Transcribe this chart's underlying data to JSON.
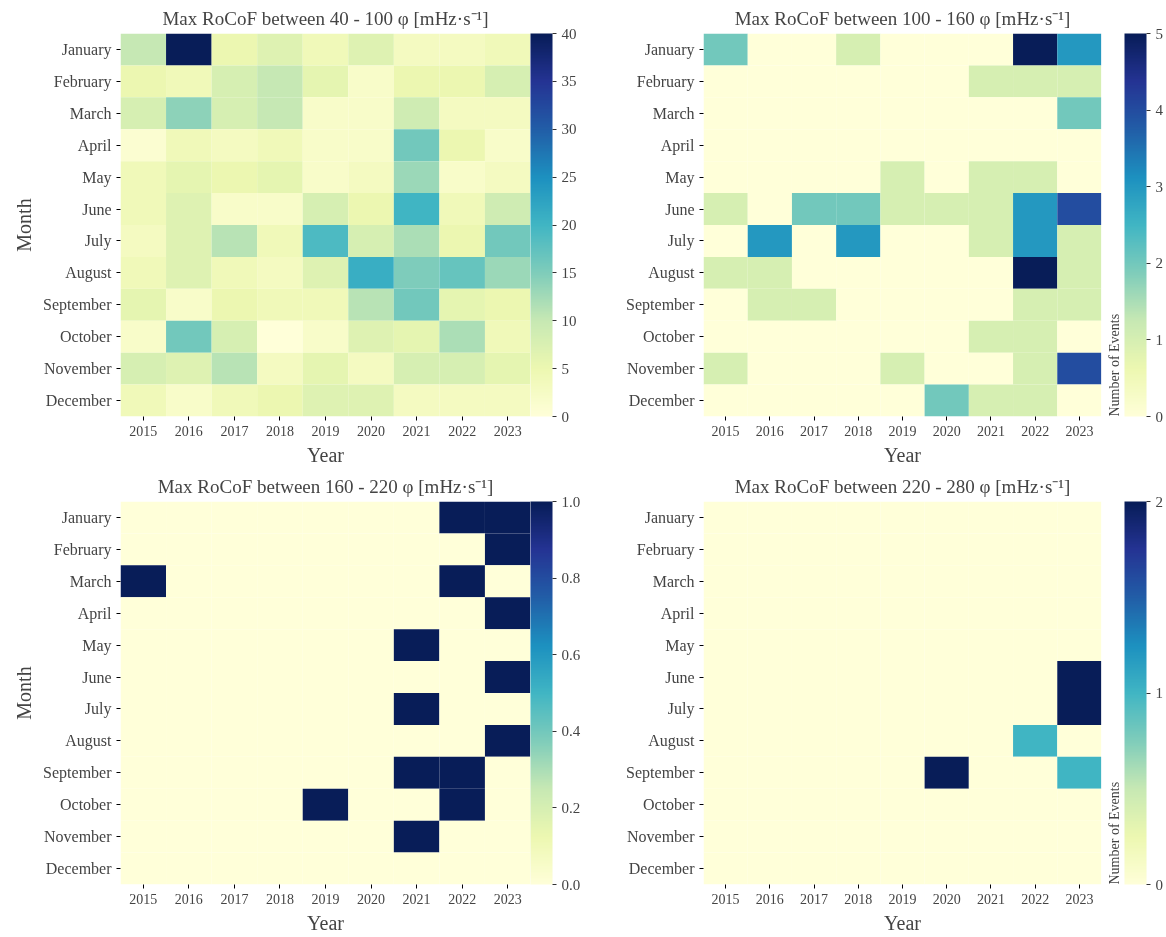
{
  "chart_data": [
    {
      "type": "heatmap",
      "title": "Max RoCoF between 40 - 100 φ [mHz·s⁻¹]",
      "xlabel": "Year",
      "ylabel": "Month",
      "categories": [
        "2015",
        "2016",
        "2017",
        "2018",
        "2019",
        "2020",
        "2021",
        "2022",
        "2023"
      ],
      "y_categories": [
        "January",
        "February",
        "March",
        "April",
        "May",
        "June",
        "July",
        "August",
        "September",
        "October",
        "November",
        "December"
      ],
      "cells": [
        [
          10,
          40,
          5,
          7,
          4,
          7,
          3,
          3,
          4
        ],
        [
          5,
          4,
          8,
          10,
          6,
          2,
          5,
          5,
          8
        ],
        [
          8,
          14,
          8,
          10,
          2,
          2,
          9,
          3,
          3
        ],
        [
          1,
          4,
          3,
          4,
          2,
          2,
          16,
          5,
          2
        ],
        [
          4,
          6,
          5,
          6,
          2,
          3,
          13,
          2,
          3
        ],
        [
          4,
          7,
          2,
          2,
          8,
          5,
          20,
          4,
          9
        ],
        [
          3,
          7,
          11,
          4,
          19,
          8,
          12,
          5,
          16
        ],
        [
          4,
          7,
          4,
          3,
          7,
          21,
          15,
          17,
          13
        ],
        [
          6,
          2,
          5,
          4,
          4,
          11,
          16,
          6,
          5
        ],
        [
          2,
          16,
          8,
          0,
          2,
          7,
          6,
          12,
          4
        ],
        [
          8,
          7,
          11,
          3,
          6,
          3,
          8,
          8,
          6
        ],
        [
          4,
          2,
          4,
          5,
          7,
          7,
          3,
          3,
          3
        ]
      ],
      "clim": [
        0,
        40
      ],
      "cticks": [
        0,
        5,
        10,
        15,
        20,
        25,
        30,
        35,
        40
      ]
    },
    {
      "type": "heatmap",
      "title": "Max RoCoF between 100 - 160 φ [mHz·s⁻¹]",
      "xlabel": "Year",
      "clabel": "Number of Events",
      "categories": [
        "2015",
        "2016",
        "2017",
        "2018",
        "2019",
        "2020",
        "2021",
        "2022",
        "2023"
      ],
      "y_categories": [
        "January",
        "February",
        "March",
        "April",
        "May",
        "June",
        "July",
        "August",
        "September",
        "October",
        "November",
        "December"
      ],
      "cells": [
        [
          2,
          0,
          0,
          1,
          0,
          0,
          0,
          5,
          3
        ],
        [
          0,
          0,
          0,
          0,
          0,
          0,
          1,
          1,
          1
        ],
        [
          0,
          0,
          0,
          0,
          0,
          0,
          0,
          0,
          2
        ],
        [
          0,
          0,
          0,
          0,
          0,
          0,
          0,
          0,
          0
        ],
        [
          0,
          0,
          0,
          0,
          1,
          0,
          1,
          1,
          0
        ],
        [
          1,
          0,
          2,
          2,
          1,
          1,
          1,
          3,
          4
        ],
        [
          0,
          3,
          0,
          3,
          0,
          0,
          1,
          3,
          1
        ],
        [
          1,
          1,
          0,
          0,
          0,
          0,
          0,
          5,
          1
        ],
        [
          0,
          1,
          1,
          0,
          0,
          0,
          0,
          1,
          1
        ],
        [
          0,
          0,
          0,
          0,
          0,
          0,
          1,
          1,
          0
        ],
        [
          1,
          0,
          0,
          0,
          1,
          0,
          0,
          1,
          4
        ],
        [
          0,
          0,
          0,
          0,
          0,
          2,
          1,
          1,
          0
        ]
      ],
      "clim": [
        0,
        5
      ],
      "cticks": [
        0,
        1,
        2,
        3,
        4,
        5
      ]
    },
    {
      "type": "heatmap",
      "title": "Max RoCoF between 160 - 220 φ [mHz·s⁻¹]",
      "xlabel": "Year",
      "ylabel": "Month",
      "categories": [
        "2015",
        "2016",
        "2017",
        "2018",
        "2019",
        "2020",
        "2021",
        "2022",
        "2023"
      ],
      "y_categories": [
        "January",
        "February",
        "March",
        "April",
        "May",
        "June",
        "July",
        "August",
        "September",
        "October",
        "November",
        "December"
      ],
      "cells": [
        [
          0,
          0,
          0,
          0,
          0,
          0,
          0,
          1,
          1
        ],
        [
          0,
          0,
          0,
          0,
          0,
          0,
          0,
          0,
          1
        ],
        [
          1,
          0,
          0,
          0,
          0,
          0,
          0,
          1,
          0
        ],
        [
          0,
          0,
          0,
          0,
          0,
          0,
          0,
          0,
          1
        ],
        [
          0,
          0,
          0,
          0,
          0,
          0,
          1,
          0,
          0
        ],
        [
          0,
          0,
          0,
          0,
          0,
          0,
          0,
          0,
          1
        ],
        [
          0,
          0,
          0,
          0,
          0,
          0,
          1,
          0,
          0
        ],
        [
          0,
          0,
          0,
          0,
          0,
          0,
          0,
          0,
          1
        ],
        [
          0,
          0,
          0,
          0,
          0,
          0,
          1,
          1,
          0
        ],
        [
          0,
          0,
          0,
          0,
          1,
          0,
          0,
          1,
          0
        ],
        [
          0,
          0,
          0,
          0,
          0,
          0,
          1,
          0,
          0
        ],
        [
          0,
          0,
          0,
          0,
          0,
          0,
          0,
          0,
          0
        ]
      ],
      "clim": [
        0,
        1
      ],
      "cticks": [
        {
          "value": 0,
          "label": "0.0"
        },
        {
          "value": 0.2,
          "label": "0.2"
        },
        {
          "value": 0.4,
          "label": "0.4"
        },
        {
          "value": 0.6,
          "label": "0.6"
        },
        {
          "value": 0.8,
          "label": "0.8"
        },
        {
          "value": 1,
          "label": "1.0"
        }
      ]
    },
    {
      "type": "heatmap",
      "title": "Max RoCoF between 220 - 280 φ [mHz·s⁻¹]",
      "xlabel": "Year",
      "clabel": "Number of Events",
      "categories": [
        "2015",
        "2016",
        "2017",
        "2018",
        "2019",
        "2020",
        "2021",
        "2022",
        "2023"
      ],
      "y_categories": [
        "January",
        "February",
        "March",
        "April",
        "May",
        "June",
        "July",
        "August",
        "September",
        "October",
        "November",
        "December"
      ],
      "cells": [
        [
          0,
          0,
          0,
          0,
          0,
          0,
          0,
          0,
          0
        ],
        [
          0,
          0,
          0,
          0,
          0,
          0,
          0,
          0,
          0
        ],
        [
          0,
          0,
          0,
          0,
          0,
          0,
          0,
          0,
          0
        ],
        [
          0,
          0,
          0,
          0,
          0,
          0,
          0,
          0,
          0
        ],
        [
          0,
          0,
          0,
          0,
          0,
          0,
          0,
          0,
          0
        ],
        [
          0,
          0,
          0,
          0,
          0,
          0,
          0,
          0,
          2
        ],
        [
          0,
          0,
          0,
          0,
          0,
          0,
          0,
          0,
          2
        ],
        [
          0,
          0,
          0,
          0,
          0,
          0,
          0,
          1,
          0
        ],
        [
          0,
          0,
          0,
          0,
          0,
          2,
          0,
          0,
          1
        ],
        [
          0,
          0,
          0,
          0,
          0,
          0,
          0,
          0,
          0
        ],
        [
          0,
          0,
          0,
          0,
          0,
          0,
          0,
          0,
          0
        ],
        [
          0,
          0,
          0,
          0,
          0,
          0,
          0,
          0,
          0
        ]
      ],
      "clim": [
        0,
        2
      ],
      "cticks": [
        0,
        1,
        2
      ]
    }
  ]
}
